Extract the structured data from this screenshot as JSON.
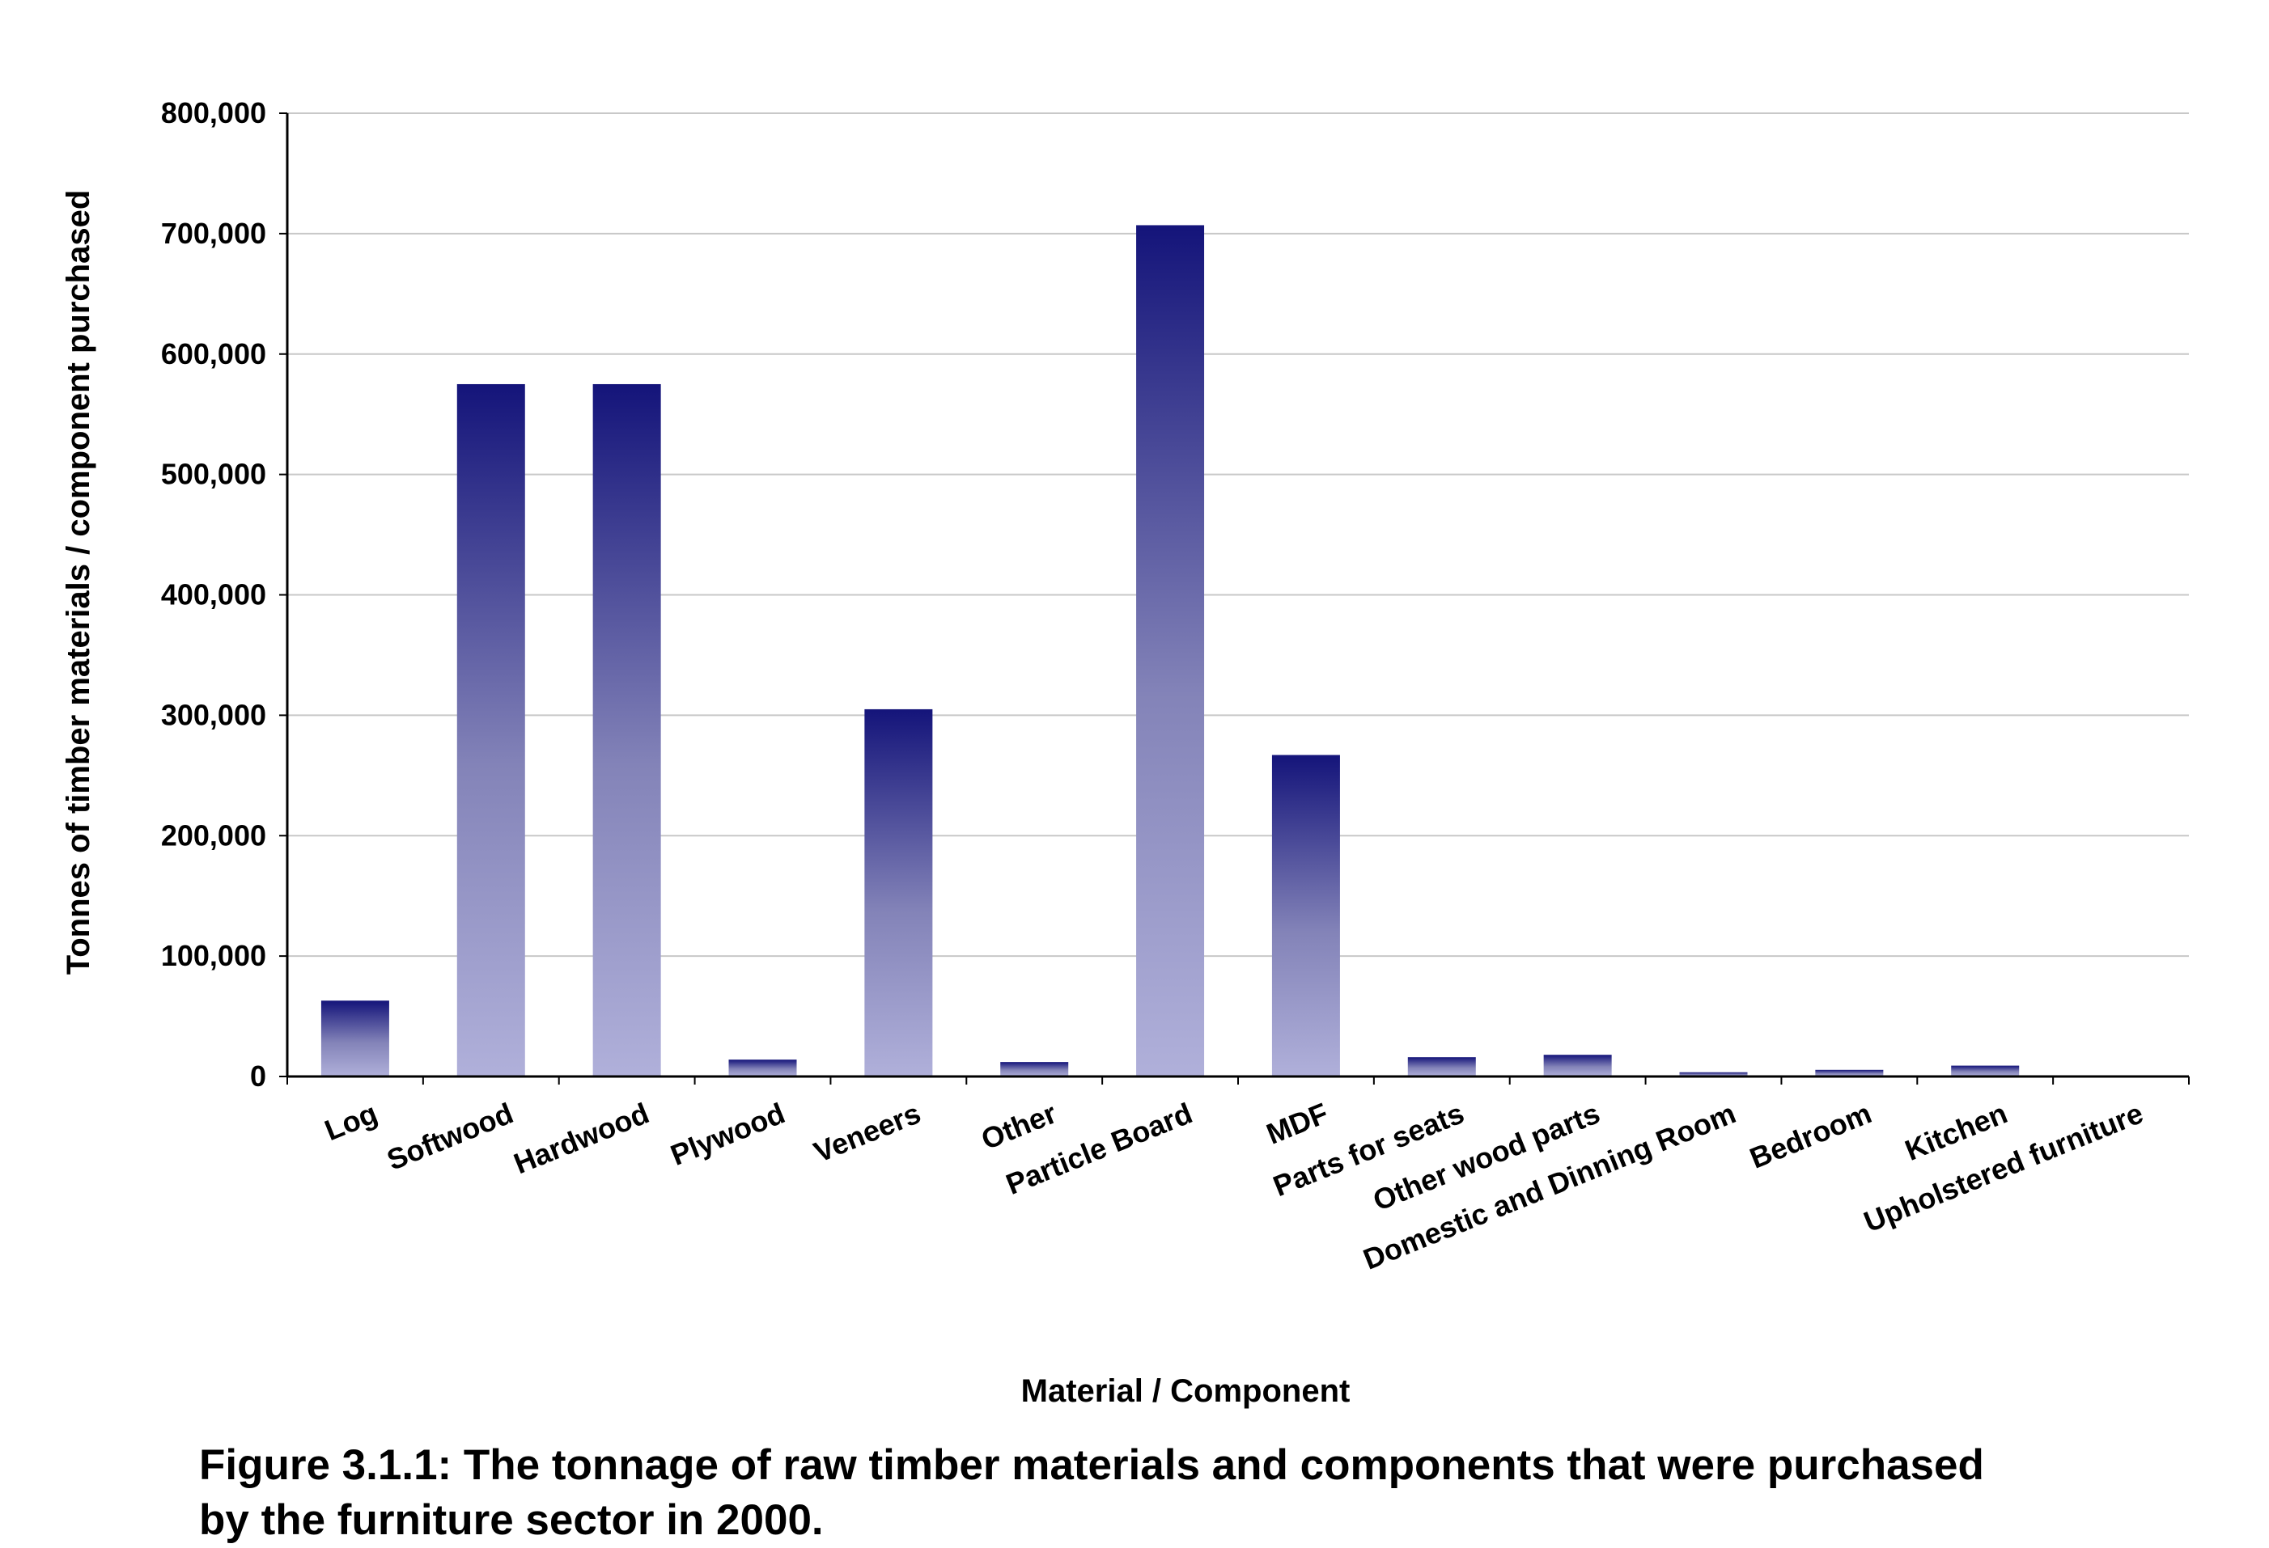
{
  "chart_data": {
    "type": "bar",
    "categories": [
      "Log",
      "Softwood",
      "Hardwood",
      "Plywood",
      "Veneers",
      "Other",
      "Particle Board",
      "MDF",
      "Parts for seats",
      "Other wood parts",
      "Domestic and Dinning Room",
      "Bedroom",
      "Kitchen",
      "Upholstered furniture"
    ],
    "values": [
      63000,
      575000,
      575000,
      14000,
      305000,
      12000,
      707000,
      267000,
      16000,
      18000,
      3500,
      5500,
      9000,
      0
    ],
    "title": "",
    "xlabel": "Material / Component",
    "ylabel": "Tonnes of timber materials / component purchased",
    "ylim": [
      0,
      800000
    ],
    "yticks": [
      0,
      100000,
      200000,
      300000,
      400000,
      500000,
      600000,
      700000,
      800000
    ],
    "ytick_labels": [
      "0",
      "100,000",
      "200,000",
      "300,000",
      "400,000",
      "500,000",
      "600,000",
      "700,000",
      "800,000"
    ],
    "grid": true,
    "colors": {
      "bar_top": "#14147a",
      "bar_bottom": "#b0b0da",
      "grid": "#c8c8c8",
      "axis": "#000000"
    }
  },
  "caption": {
    "line1": "Figure 3.1.1: The tonnage of raw timber materials and components that were purchased",
    "line2": "by the furniture sector in 2000."
  }
}
